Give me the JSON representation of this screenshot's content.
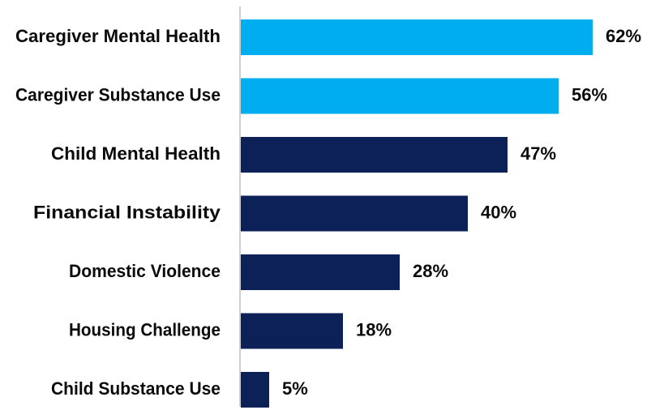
{
  "chart_data": {
    "type": "bar",
    "orientation": "horizontal",
    "categories": [
      "Caregiver Mental Health",
      "Caregiver Substance Use",
      "Child Mental Health",
      "Financial Instability",
      "Domestic Violence",
      "Housing Challenge",
      "Child Substance Use"
    ],
    "values": [
      62,
      56,
      47,
      40,
      28,
      18,
      5
    ],
    "value_labels": [
      "62%",
      "56%",
      "47%",
      "40%",
      "28%",
      "18%",
      "5%"
    ],
    "bar_colors": [
      "#00adee",
      "#00adee",
      "#0d2159",
      "#0d2159",
      "#0d2159",
      "#0d2159",
      "#0d2159"
    ],
    "title": "",
    "xlabel": "",
    "ylabel": "",
    "xlim": [
      0,
      70
    ],
    "grid": false,
    "legend": "none"
  }
}
